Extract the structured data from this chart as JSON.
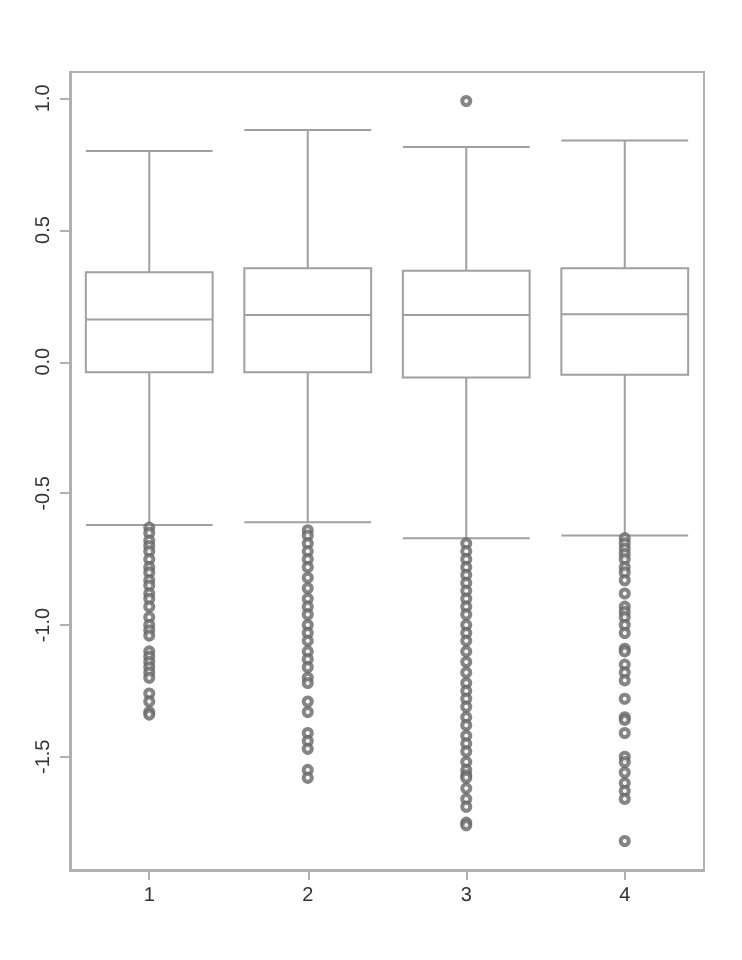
{
  "chart_data": {
    "type": "box",
    "categories": [
      "1",
      "2",
      "3",
      "4"
    ],
    "color": "#a0a0a0",
    "boxes": [
      {
        "low": -0.62,
        "q1": -0.04,
        "median": 0.16,
        "q3": 0.34,
        "high": 0.8,
        "outliers": [
          -0.63,
          -0.65,
          -0.68,
          -0.7,
          -0.72,
          -0.75,
          -0.78,
          -0.8,
          -0.83,
          -0.85,
          -0.88,
          -0.9,
          -0.93,
          -0.97,
          -1.0,
          -1.02,
          -1.04,
          -1.1,
          -1.12,
          -1.14,
          -1.16,
          -1.18,
          -1.2,
          -1.26,
          -1.29,
          -1.33,
          -1.34
        ]
      },
      {
        "low": -0.61,
        "q1": -0.04,
        "median": 0.177,
        "q3": 0.355,
        "high": 0.88,
        "outliers": [
          -0.64,
          -0.66,
          -0.69,
          -0.72,
          -0.75,
          -0.78,
          -0.82,
          -0.86,
          -0.9,
          -0.93,
          -0.96,
          -1.0,
          -1.03,
          -1.06,
          -1.1,
          -1.13,
          -1.16,
          -1.2,
          -1.22,
          -1.29,
          -1.33,
          -1.41,
          -1.44,
          -1.47,
          -1.55,
          -1.58
        ]
      },
      {
        "low": -0.67,
        "q1": -0.06,
        "median": 0.177,
        "q3": 0.345,
        "high": 0.815,
        "outliers": [
          0.99,
          -0.69,
          -0.72,
          -0.75,
          -0.78,
          -0.81,
          -0.84,
          -0.87,
          -0.9,
          -0.93,
          -0.96,
          -1.0,
          -1.03,
          -1.06,
          -1.1,
          -1.14,
          -1.18,
          -1.22,
          -1.25,
          -1.28,
          -1.31,
          -1.35,
          -1.38,
          -1.42,
          -1.45,
          -1.48,
          -1.52,
          -1.55,
          -1.57,
          -1.58,
          -1.62,
          -1.66,
          -1.69,
          -1.75,
          -1.76
        ]
      },
      {
        "low": -0.66,
        "q1": -0.05,
        "median": 0.18,
        "q3": 0.355,
        "high": 0.84,
        "outliers": [
          -0.67,
          -0.69,
          -0.71,
          -0.73,
          -0.75,
          -0.78,
          -0.8,
          -0.83,
          -0.88,
          -0.93,
          -0.95,
          -0.97,
          -1.0,
          -1.03,
          -1.09,
          -1.1,
          -1.15,
          -1.18,
          -1.21,
          -1.28,
          -1.35,
          -1.36,
          -1.41,
          -1.5,
          -1.52,
          -1.56,
          -1.6,
          -1.63,
          -1.66,
          -1.82
        ]
      }
    ],
    "ylim": [
      -1.93,
      1.1
    ],
    "yticks": [
      {
        "value": -1.5,
        "label": "-1.5"
      },
      {
        "value": -1.0,
        "label": "-1.0"
      },
      {
        "value": -0.5,
        "label": "-0.5"
      },
      {
        "value": 0,
        "label": "0.0"
      },
      {
        "value": 0.5,
        "label": "0.5"
      },
      {
        "value": 1.0,
        "label": "1.0"
      }
    ],
    "grid": false
  }
}
